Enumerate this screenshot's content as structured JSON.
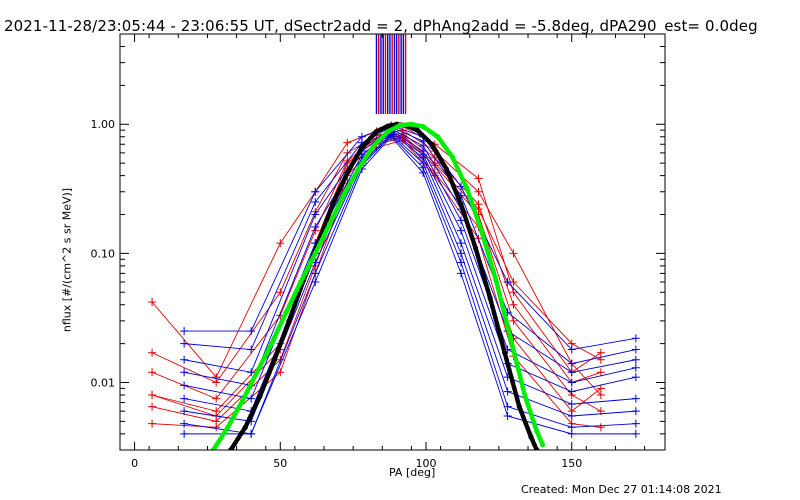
{
  "title": "2021-11-28/23:05:44 - 23:06:55 UT, dSectr2add = 2, dPhAng2add = -5.8deg, dPA290_est=  0.0deg",
  "footer": {
    "created": "Created: Mon Dec 27 01:14:08 2021"
  },
  "colors": {
    "red": "#e00000",
    "blue": "#0000e0",
    "black": "#000000",
    "green": "#00ee00",
    "frame": "#000000"
  },
  "chart_data": {
    "type": "line",
    "xlabel": "PA [deg]",
    "ylabel": "nflux [#/(cm^2 s sr MeV)]",
    "xlim": [
      -5,
      182
    ],
    "ylim": [
      0.003,
      5
    ],
    "yscale": "log",
    "xticks": [
      0,
      50,
      100,
      150
    ],
    "xtick_labels": [
      "0",
      "50",
      "100",
      "150"
    ],
    "yticks": [
      0.01,
      0.1,
      1.0
    ],
    "ytick_labels": [
      "0.01",
      "0.10",
      "1.00"
    ],
    "grid": false,
    "series": [
      {
        "color": "red",
        "kind": "line-marker",
        "x": [
          6,
          28,
          50,
          62,
          73,
          83,
          92,
          103,
          118,
          130,
          150,
          160
        ],
        "y": [
          0.042,
          0.011,
          0.12,
          0.3,
          0.72,
          0.88,
          0.96,
          0.7,
          0.38,
          0.05,
          0.012,
          0.017
        ]
      },
      {
        "color": "red",
        "kind": "line-marker",
        "x": [
          6,
          28,
          50,
          62,
          73,
          83,
          92,
          103,
          118,
          130,
          150,
          160
        ],
        "y": [
          0.017,
          0.01,
          0.05,
          0.21,
          0.6,
          0.82,
          0.9,
          0.62,
          0.3,
          0.1,
          0.014,
          0.008
        ]
      },
      {
        "color": "red",
        "kind": "line-marker",
        "x": [
          6,
          28,
          50,
          62,
          73,
          83,
          92,
          103,
          118,
          130,
          150,
          160
        ],
        "y": [
          0.012,
          0.0075,
          0.033,
          0.15,
          0.52,
          0.78,
          0.85,
          0.55,
          0.24,
          0.04,
          0.01,
          0.012
        ]
      },
      {
        "color": "red",
        "kind": "line-marker",
        "x": [
          6,
          28,
          50,
          62,
          73,
          83,
          92,
          103,
          118,
          130,
          150,
          160
        ],
        "y": [
          0.008,
          0.006,
          0.02,
          0.1,
          0.45,
          0.72,
          0.8,
          0.48,
          0.2,
          0.03,
          0.008,
          0.006
        ]
      },
      {
        "color": "red",
        "kind": "line-marker",
        "x": [
          6,
          28,
          50,
          62,
          73,
          83,
          92,
          103,
          118,
          130,
          150,
          160
        ],
        "y": [
          0.0065,
          0.005,
          0.015,
          0.08,
          0.4,
          0.7,
          0.78,
          0.42,
          0.16,
          0.022,
          0.006,
          0.009
        ]
      },
      {
        "color": "red",
        "kind": "line-marker",
        "x": [
          6,
          28,
          50,
          62,
          73,
          83,
          92,
          103,
          118,
          130,
          150,
          160
        ],
        "y": [
          0.0048,
          0.0045,
          0.012,
          0.07,
          0.35,
          0.66,
          0.75,
          0.4,
          0.13,
          0.016,
          0.0048,
          0.0045
        ]
      },
      {
        "color": "red",
        "kind": "line-marker",
        "x": [
          6,
          28,
          50,
          62,
          73,
          83,
          92,
          103,
          118,
          130,
          150,
          160
        ],
        "y": [
          0.008,
          0.0055,
          0.018,
          0.12,
          0.5,
          0.76,
          0.82,
          0.5,
          0.22,
          0.06,
          0.02,
          0.015
        ]
      },
      {
        "color": "blue",
        "kind": "line-marker",
        "x": [
          17,
          40,
          62,
          78,
          88,
          99,
          112,
          128,
          150,
          172
        ],
        "y": [
          0.025,
          0.025,
          0.3,
          0.8,
          0.98,
          0.8,
          0.33,
          0.06,
          0.018,
          0.022
        ]
      },
      {
        "color": "blue",
        "kind": "line-marker",
        "x": [
          17,
          40,
          62,
          78,
          88,
          99,
          112,
          128,
          150,
          172
        ],
        "y": [
          0.02,
          0.018,
          0.25,
          0.72,
          0.95,
          0.74,
          0.28,
          0.035,
          0.014,
          0.018
        ]
      },
      {
        "color": "blue",
        "kind": "line-marker",
        "x": [
          17,
          40,
          62,
          78,
          88,
          99,
          112,
          128,
          150,
          172
        ],
        "y": [
          0.015,
          0.012,
          0.2,
          0.66,
          0.92,
          0.68,
          0.22,
          0.025,
          0.012,
          0.015
        ]
      },
      {
        "color": "blue",
        "kind": "line-marker",
        "x": [
          17,
          40,
          62,
          78,
          88,
          99,
          112,
          128,
          150,
          172
        ],
        "y": [
          0.012,
          0.0095,
          0.16,
          0.62,
          0.9,
          0.62,
          0.18,
          0.018,
          0.01,
          0.013
        ]
      },
      {
        "color": "blue",
        "kind": "line-marker",
        "x": [
          17,
          40,
          62,
          78,
          88,
          99,
          112,
          128,
          150,
          172
        ],
        "y": [
          0.0095,
          0.0075,
          0.12,
          0.58,
          0.88,
          0.58,
          0.15,
          0.014,
          0.0085,
          0.011
        ]
      },
      {
        "color": "blue",
        "kind": "line-marker",
        "x": [
          17,
          40,
          62,
          78,
          88,
          99,
          112,
          128,
          150,
          172
        ],
        "y": [
          0.0075,
          0.006,
          0.1,
          0.55,
          0.86,
          0.55,
          0.12,
          0.011,
          0.0068,
          0.0075
        ]
      },
      {
        "color": "blue",
        "kind": "line-marker",
        "x": [
          17,
          40,
          62,
          78,
          88,
          99,
          112,
          128,
          150,
          172
        ],
        "y": [
          0.006,
          0.005,
          0.085,
          0.5,
          0.84,
          0.5,
          0.1,
          0.0085,
          0.0055,
          0.006
        ]
      },
      {
        "color": "blue",
        "kind": "line-marker",
        "x": [
          17,
          40,
          62,
          78,
          88,
          99,
          112,
          128,
          150,
          172
        ],
        "y": [
          0.0048,
          0.004,
          0.07,
          0.48,
          0.82,
          0.46,
          0.085,
          0.0065,
          0.0045,
          0.0048
        ]
      },
      {
        "color": "blue",
        "kind": "line-marker",
        "x": [
          17,
          40,
          62,
          78,
          88,
          99,
          112,
          128,
          150,
          172
        ],
        "y": [
          0.004,
          0.004,
          0.06,
          0.45,
          0.8,
          0.42,
          0.07,
          0.0055,
          0.004,
          0.004
        ]
      },
      {
        "color": "black",
        "kind": "fit-dots",
        "x": [
          33,
          38,
          43,
          48,
          53,
          58,
          63,
          68,
          73,
          78,
          83,
          87,
          90,
          93,
          97,
          102,
          107,
          112,
          117,
          122,
          127,
          132,
          136,
          138
        ],
        "y": [
          0.003,
          0.0045,
          0.0078,
          0.015,
          0.03,
          0.062,
          0.12,
          0.24,
          0.42,
          0.66,
          0.88,
          0.97,
          1.0,
          0.98,
          0.9,
          0.7,
          0.45,
          0.24,
          0.11,
          0.045,
          0.017,
          0.0065,
          0.0038,
          0.003
        ]
      },
      {
        "color": "green",
        "kind": "fit-dots",
        "x": [
          27,
          32,
          37,
          42,
          47,
          52,
          57,
          62,
          67,
          72,
          77,
          82,
          87,
          91,
          95,
          99,
          104,
          109,
          114,
          119,
          124,
          129,
          134,
          138,
          140
        ],
        "y": [
          0.003,
          0.0045,
          0.0072,
          0.012,
          0.02,
          0.035,
          0.06,
          0.1,
          0.17,
          0.29,
          0.46,
          0.68,
          0.88,
          0.98,
          1.0,
          0.96,
          0.8,
          0.56,
          0.32,
          0.15,
          0.062,
          0.022,
          0.0078,
          0.0042,
          0.0033
        ]
      }
    ],
    "vertical_bars": {
      "x_range": [
        83,
        93
      ],
      "y_from": 1.2,
      "y_to": 5,
      "colors": [
        "blue",
        "red",
        "blue"
      ]
    }
  }
}
